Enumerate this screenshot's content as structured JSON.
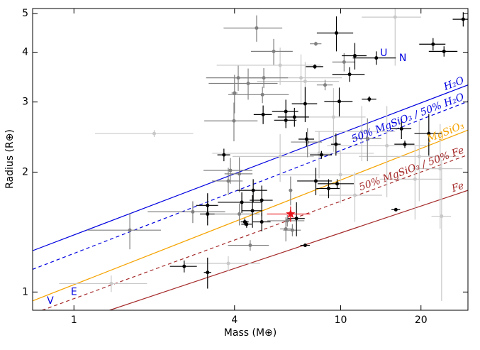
{
  "chart_data": {
    "type": "scatter",
    "xlabel": "Mass (M⊕)",
    "ylabel": "Radius (R⊕)",
    "xscale": "log",
    "yscale": "log",
    "xlim": [
      0.7,
      30
    ],
    "ylim": [
      0.9,
      5.15
    ],
    "xticks": [
      1,
      4,
      10,
      20
    ],
    "yticks": [
      1,
      2,
      3,
      4,
      5
    ],
    "series": [
      {
        "color": "#c8c8c8",
        "x": [
          2.0,
          7.36,
          16.0,
          9.4,
          12.0,
          14.9,
          19.7,
          23.6,
          9.98,
          11.3,
          19.0,
          23.9,
          1.38,
          3.79,
          8.3,
          5.93,
          7.1,
          5.93
        ],
        "values": [
          2.5,
          3.38,
          4.9,
          2.75,
          2.53,
          2.33,
          2.19,
          2.04,
          1.97,
          1.75,
          1.92,
          1.55,
          1.05,
          1.18,
          2.23,
          2.19,
          3.45,
          3.71
        ],
        "xerr": [
          0.8,
          2.5,
          4,
          3,
          4,
          6,
          8,
          5,
          4,
          3,
          5,
          2,
          0.5,
          1.2,
          5,
          2,
          3,
          2.5
        ],
        "yerr": [
          0.05,
          0.4,
          1.2,
          0.5,
          0.4,
          0.6,
          0.5,
          0.6,
          0.3,
          0.25,
          0.4,
          0.6,
          0.05,
          0.05,
          0.3,
          0.3,
          0.5,
          0.4
        ]
      },
      {
        "color": "#808080",
        "x": [
          4.84,
          5.61,
          8.07,
          4.13,
          5.15,
          4.5,
          4.0,
          8.74,
          3.98,
          5.09,
          7.51,
          12.6,
          3.86,
          4.17,
          3.79,
          6.49,
          2.79,
          4.17,
          6.31,
          1.62,
          4.58,
          6.59,
          6.23,
          10.3
        ],
        "values": [
          4.6,
          4.02,
          4.2,
          3.45,
          3.45,
          3.34,
          3.16,
          3.31,
          2.69,
          3.13,
          2.38,
          2.43,
          2.02,
          1.98,
          1.9,
          1.8,
          1.59,
          1.57,
          1.51,
          1.43,
          1.31,
          1.43,
          1.44,
          3.78
        ],
        "xerr": [
          1.2,
          1.0,
          0.4,
          1.0,
          1.2,
          1.3,
          0.1,
          0.6,
          0.9,
          1.3,
          1.0,
          1.6,
          0.8,
          0.5,
          0.5,
          0.1,
          0.9,
          0.8,
          1.0,
          0.5,
          0.8,
          0.5,
          0.3,
          1.0
        ],
        "yerr": [
          0.35,
          0.3,
          0.05,
          0.25,
          0.2,
          0.3,
          0.35,
          0.1,
          0.3,
          0.15,
          0.2,
          0.3,
          0.15,
          0.2,
          0.15,
          0.15,
          0.1,
          0.1,
          0.05,
          0.15,
          0.04,
          0.05,
          0.1,
          0.2
        ]
      },
      {
        "color": "#000000",
        "x": [
          28.8,
          22.2,
          24.4,
          9.64,
          11.3,
          13.6,
          10.8,
          8.0,
          12.8,
          9.88,
          7.36,
          5.12,
          6.23,
          6.71,
          6.23,
          16.9,
          7.45,
          17.4,
          21.4,
          9.6,
          8.47,
          3.65,
          8.07,
          9.01,
          9.7,
          4.7,
          4.26,
          5.06,
          3.17,
          3.17,
          4.67,
          5.06,
          4.37,
          4.44,
          6.83,
          16.1,
          2.59,
          3.17,
          7.36
        ],
        "values": [
          4.84,
          4.19,
          4.02,
          4.47,
          3.92,
          3.87,
          3.52,
          3.68,
          3.05,
          3.01,
          2.97,
          2.79,
          2.84,
          2.75,
          2.7,
          2.57,
          2.42,
          2.35,
          2.5,
          2.35,
          2.21,
          2.21,
          1.9,
          1.82,
          1.87,
          1.8,
          1.68,
          1.7,
          1.65,
          1.57,
          1.6,
          1.5,
          1.5,
          1.48,
          1.53,
          1.61,
          1.16,
          1.12,
          1.31
        ],
        "xerr": [
          2.5,
          2.5,
          3.0,
          1.5,
          1.2,
          2.5,
          1.5,
          0.6,
          0.8,
          1.2,
          0.8,
          0.4,
          0.7,
          0.9,
          0.6,
          1.5,
          0.5,
          1.5,
          2.5,
          0.4,
          0.8,
          0.2,
          1.2,
          0.9,
          1.5,
          0.6,
          0.8,
          0.5,
          0.3,
          0.2,
          0.4,
          0.4,
          0.15,
          0.2,
          0.5,
          0.6,
          0.3,
          0.1,
          0.3
        ],
        "yerr": [
          0.2,
          0.15,
          0.12,
          0.45,
          0.3,
          0.15,
          0.15,
          0.05,
          0.05,
          0.25,
          0.3,
          0.15,
          0.2,
          0.15,
          0.12,
          0.15,
          0.1,
          0.05,
          0.3,
          0.15,
          0.05,
          0.08,
          0.15,
          0.1,
          0.05,
          0.12,
          0.1,
          0.15,
          0.12,
          0.1,
          0.15,
          0.08,
          0.03,
          0.03,
          0.15,
          0.01,
          0.04,
          0.1,
          0.01
        ]
      },
      {
        "color": "#e8141c",
        "marker": "star",
        "x": [
          6.49
        ],
        "values": [
          1.57
        ],
        "xerr": [
          1.2
        ],
        "yerr": [
          0.07
        ]
      }
    ],
    "curves": [
      {
        "name": "H₂O",
        "color": "#0000e0",
        "dashed": false,
        "x": [
          0.7,
          30
        ],
        "values": [
          1.27,
          3.31
        ]
      },
      {
        "name": "50% MgSiO₃ / 50% H₂O",
        "color": "#0000e0",
        "dashed": true,
        "x": [
          0.7,
          30
        ],
        "values": [
          1.14,
          3.01
        ]
      },
      {
        "name": "MgSiO₃",
        "color": "#f5a300",
        "dashed": false,
        "x": [
          0.7,
          30
        ],
        "values": [
          0.95,
          2.55
        ]
      },
      {
        "name": "50% MgSiO₃ / 50% Fe",
        "color": "#a52a2a",
        "dashed": true,
        "x": [
          0.76,
          30
        ],
        "values": [
          0.9,
          2.21
        ]
      },
      {
        "name": "Fe",
        "color": "#a52a2a",
        "dashed": false,
        "x": [
          1.36,
          30
        ],
        "values": [
          0.9,
          1.8
        ]
      }
    ],
    "planets": {
      "color": "#0000e0",
      "labels": [
        "V",
        "E",
        "U",
        "N"
      ],
      "x": [
        0.815,
        1.0,
        14.5,
        17.1
      ],
      "values": [
        0.95,
        1.0,
        3.98,
        3.86
      ]
    }
  }
}
